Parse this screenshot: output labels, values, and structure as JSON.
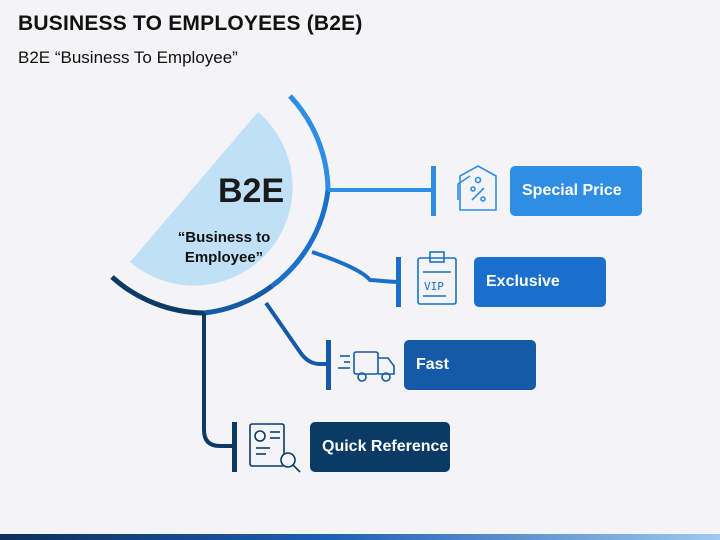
{
  "title": "BUSINESS TO EMPLOYEES (B2E)",
  "subtitle": "B2E “Business To Employee”",
  "hub": {
    "label": "B2E",
    "sublabel": "“Business to Employee”"
  },
  "items": [
    {
      "label": "Special Price",
      "icon": "price-tag-icon",
      "color": "#2f8de4"
    },
    {
      "label": "Exclusive",
      "icon": "vip-pass-icon",
      "color": "#1a6fcc"
    },
    {
      "label": "Fast",
      "icon": "delivery-truck-icon",
      "color": "#145aa8"
    },
    {
      "label": "Quick Reference",
      "icon": "document-search-icon",
      "color": "#0b3a66"
    }
  ]
}
